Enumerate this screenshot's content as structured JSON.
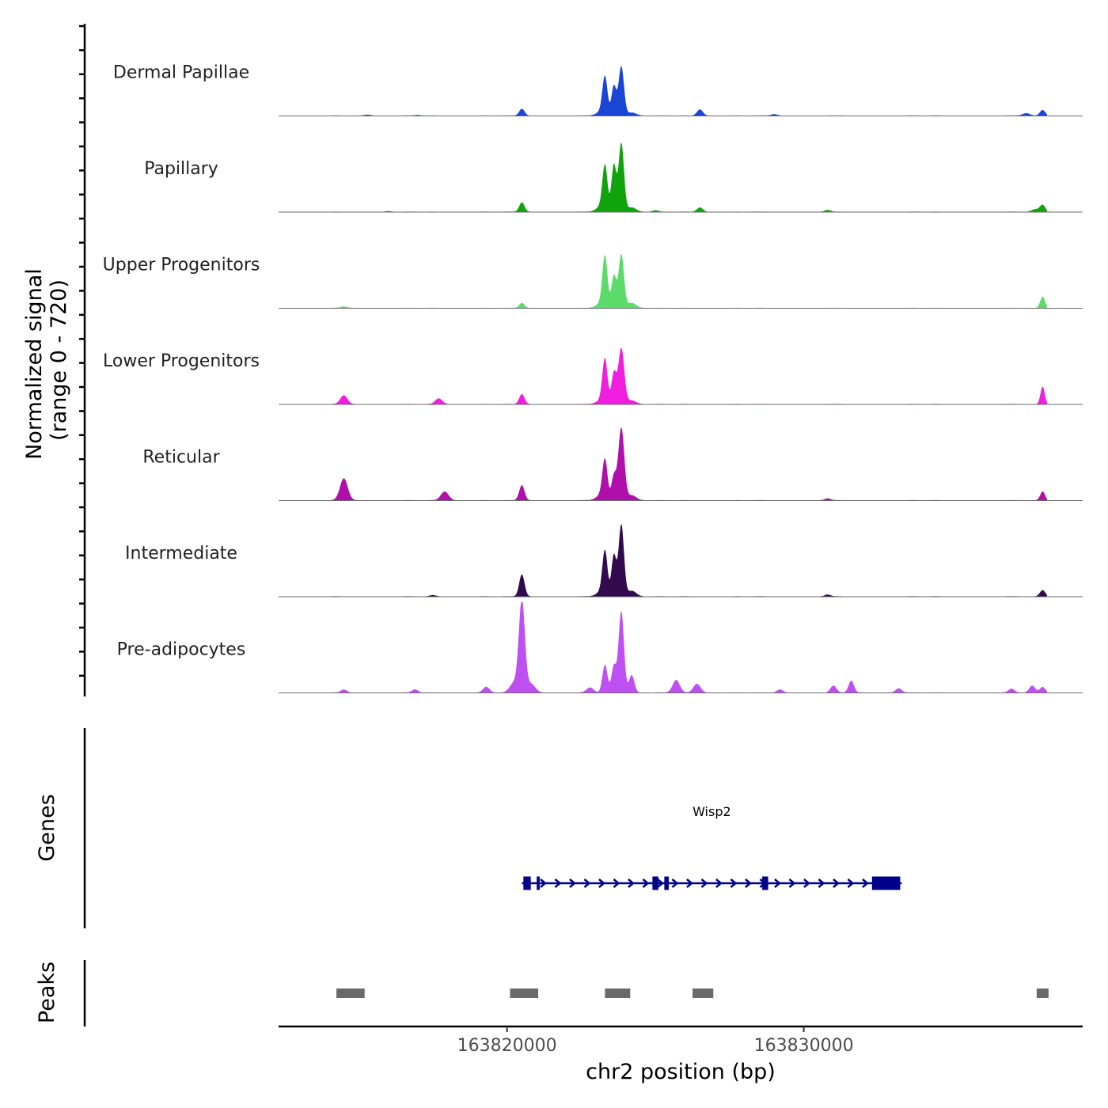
{
  "chart_data": {
    "type": "area",
    "title": "",
    "xlabel": "chr2 position (bp)",
    "ylabel": [
      "Normalized signal",
      "(range 0 - 720)"
    ],
    "ylim": [
      0,
      720
    ],
    "xlim": [
      163812300,
      163839400
    ],
    "x_ticks": [
      163820000,
      163830000
    ],
    "x_tick_labels": [
      "163820000",
      "163830000"
    ],
    "tracks": [
      {
        "name": "Dermal Papillae",
        "color": "#1a46d6",
        "peaks": [
          {
            "x": 163813700,
            "h": 6,
            "w": 100
          },
          {
            "x": 163815300,
            "h": 8,
            "w": 120
          },
          {
            "x": 163817000,
            "h": 5,
            "w": 100
          },
          {
            "x": 163820500,
            "h": 55,
            "w": 90
          },
          {
            "x": 163823300,
            "h": 300,
            "w": 85
          },
          {
            "x": 163823600,
            "h": 235,
            "w": 80
          },
          {
            "x": 163823850,
            "h": 390,
            "w": 90
          },
          {
            "x": 163823150,
            "h": 30,
            "w": 150
          },
          {
            "x": 163824200,
            "h": 25,
            "w": 150
          },
          {
            "x": 163826500,
            "h": 50,
            "w": 100
          },
          {
            "x": 163829000,
            "h": 12,
            "w": 100
          },
          {
            "x": 163837500,
            "h": 20,
            "w": 120
          },
          {
            "x": 163838050,
            "h": 45,
            "w": 90
          }
        ]
      },
      {
        "name": "Papillary",
        "color": "#11a30b",
        "peaks": [
          {
            "x": 163813500,
            "h": 5,
            "w": 100
          },
          {
            "x": 163816000,
            "h": 6,
            "w": 100
          },
          {
            "x": 163820500,
            "h": 75,
            "w": 90
          },
          {
            "x": 163823300,
            "h": 355,
            "w": 85
          },
          {
            "x": 163823600,
            "h": 370,
            "w": 80
          },
          {
            "x": 163823850,
            "h": 545,
            "w": 90
          },
          {
            "x": 163823150,
            "h": 40,
            "w": 150
          },
          {
            "x": 163824200,
            "h": 35,
            "w": 150
          },
          {
            "x": 163825000,
            "h": 12,
            "w": 100
          },
          {
            "x": 163826500,
            "h": 35,
            "w": 100
          },
          {
            "x": 163830800,
            "h": 15,
            "w": 100
          },
          {
            "x": 163837800,
            "h": 20,
            "w": 120
          },
          {
            "x": 163838050,
            "h": 55,
            "w": 90
          }
        ]
      },
      {
        "name": "Upper Progenitors",
        "color": "#5bdc6a",
        "peaks": [
          {
            "x": 163814500,
            "h": 12,
            "w": 120
          },
          {
            "x": 163820500,
            "h": 40,
            "w": 90
          },
          {
            "x": 163823300,
            "h": 400,
            "w": 85
          },
          {
            "x": 163823600,
            "h": 255,
            "w": 80
          },
          {
            "x": 163823850,
            "h": 425,
            "w": 90
          },
          {
            "x": 163823150,
            "h": 35,
            "w": 150
          },
          {
            "x": 163824200,
            "h": 40,
            "w": 150
          },
          {
            "x": 163838050,
            "h": 90,
            "w": 80
          }
        ]
      },
      {
        "name": "Lower Progenitors",
        "color": "#f01fdf",
        "peaks": [
          {
            "x": 163814500,
            "h": 70,
            "w": 120
          },
          {
            "x": 163817700,
            "h": 45,
            "w": 120
          },
          {
            "x": 163820500,
            "h": 80,
            "w": 90
          },
          {
            "x": 163823300,
            "h": 350,
            "w": 85
          },
          {
            "x": 163823600,
            "h": 245,
            "w": 80
          },
          {
            "x": 163823850,
            "h": 445,
            "w": 100
          },
          {
            "x": 163823150,
            "h": 30,
            "w": 150
          },
          {
            "x": 163824200,
            "h": 30,
            "w": 150
          },
          {
            "x": 163838050,
            "h": 140,
            "w": 70
          }
        ]
      },
      {
        "name": "Reticular",
        "color": "#b10fab",
        "peaks": [
          {
            "x": 163814500,
            "h": 175,
            "w": 130
          },
          {
            "x": 163817900,
            "h": 70,
            "w": 130
          },
          {
            "x": 163820500,
            "h": 120,
            "w": 90
          },
          {
            "x": 163823300,
            "h": 310,
            "w": 85
          },
          {
            "x": 163823600,
            "h": 190,
            "w": 80
          },
          {
            "x": 163823850,
            "h": 575,
            "w": 100
          },
          {
            "x": 163823150,
            "h": 40,
            "w": 150
          },
          {
            "x": 163824200,
            "h": 40,
            "w": 150
          },
          {
            "x": 163830800,
            "h": 15,
            "w": 100
          },
          {
            "x": 163838050,
            "h": 70,
            "w": 80
          }
        ]
      },
      {
        "name": "Intermediate",
        "color": "#320a4d",
        "peaks": [
          {
            "x": 163817500,
            "h": 10,
            "w": 100
          },
          {
            "x": 163820500,
            "h": 175,
            "w": 90
          },
          {
            "x": 163823300,
            "h": 350,
            "w": 85
          },
          {
            "x": 163823600,
            "h": 325,
            "w": 80
          },
          {
            "x": 163823850,
            "h": 570,
            "w": 90
          },
          {
            "x": 163823150,
            "h": 35,
            "w": 150
          },
          {
            "x": 163824200,
            "h": 45,
            "w": 150
          },
          {
            "x": 163830800,
            "h": 15,
            "w": 100
          },
          {
            "x": 163838050,
            "h": 50,
            "w": 90
          }
        ]
      },
      {
        "name": "Pre-adipocytes",
        "color": "#be4ff1",
        "peaks": [
          {
            "x": 163814500,
            "h": 25,
            "w": 100
          },
          {
            "x": 163816900,
            "h": 25,
            "w": 100
          },
          {
            "x": 163819300,
            "h": 45,
            "w": 110
          },
          {
            "x": 163820500,
            "h": 720,
            "w": 100
          },
          {
            "x": 163820250,
            "h": 80,
            "w": 150
          },
          {
            "x": 163820800,
            "h": 70,
            "w": 150
          },
          {
            "x": 163822800,
            "h": 40,
            "w": 120
          },
          {
            "x": 163823300,
            "h": 220,
            "w": 85
          },
          {
            "x": 163823600,
            "h": 210,
            "w": 80
          },
          {
            "x": 163823850,
            "h": 645,
            "w": 90
          },
          {
            "x": 163824200,
            "h": 140,
            "w": 90
          },
          {
            "x": 163825700,
            "h": 100,
            "w": 120
          },
          {
            "x": 163826400,
            "h": 70,
            "w": 120
          },
          {
            "x": 163829200,
            "h": 25,
            "w": 100
          },
          {
            "x": 163831000,
            "h": 55,
            "w": 100
          },
          {
            "x": 163831600,
            "h": 95,
            "w": 90
          },
          {
            "x": 163833200,
            "h": 35,
            "w": 100
          },
          {
            "x": 163837000,
            "h": 30,
            "w": 100
          },
          {
            "x": 163837700,
            "h": 55,
            "w": 100
          },
          {
            "x": 163838050,
            "h": 45,
            "w": 90
          }
        ]
      }
    ],
    "genes": {
      "panel_label": "Genes",
      "color": "#00008b",
      "items": [
        {
          "name": "Wisp2",
          "strand": "+",
          "start": 163820500,
          "end": 163833300,
          "exons": [
            [
              163820550,
              163820800
            ],
            [
              163821000,
              163821100
            ],
            [
              163824900,
              163825100
            ],
            [
              163825300,
              163825450
            ],
            [
              163828600,
              163828800
            ],
            [
              163832300,
              163833250
            ]
          ]
        }
      ]
    },
    "peaks_track": {
      "panel_label": "Peaks",
      "color": "#696969",
      "regions": [
        [
          163814250,
          163815200
        ],
        [
          163820100,
          163821050
        ],
        [
          163823300,
          163824150
        ],
        [
          163826250,
          163826950
        ],
        [
          163837850,
          163838250
        ]
      ]
    }
  }
}
